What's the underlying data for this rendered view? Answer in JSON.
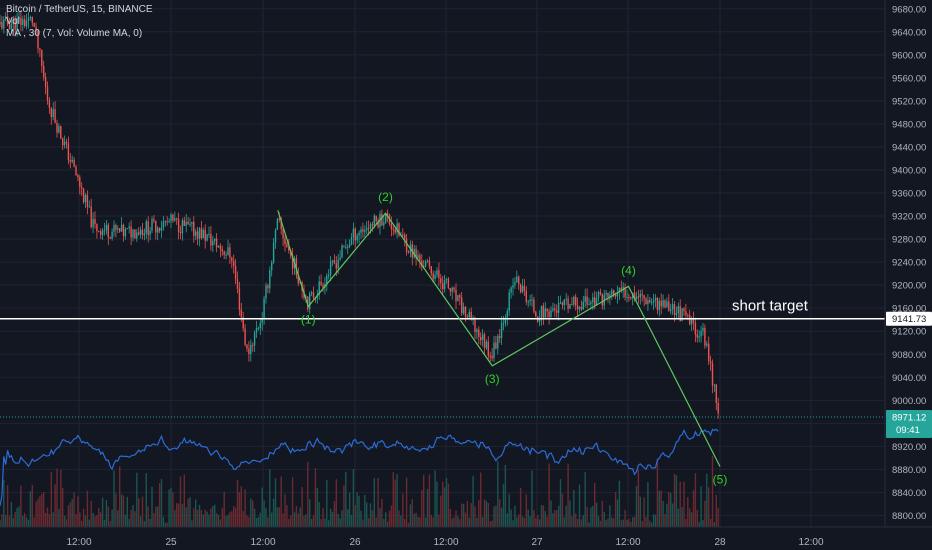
{
  "legend": {
    "symbol": "Bitcoin / TetherUS, 15, BINANCE",
    "vol": "Vol",
    "ma": "MA , 30 (7, Vol: Volume MA, 0)"
  },
  "colors": {
    "background": "#131722",
    "grid": "#1f2433",
    "up": "#26a69a",
    "down": "#ef5350",
    "wave": "#5ec85e",
    "wave_label": "#2ed12e",
    "volume_ma": "#2b6cd8",
    "target_line": "#ffffff",
    "price_badge": "#26a69a"
  },
  "chart_data": {
    "type": "candlestick",
    "symbol": "Bitcoin / TetherUS",
    "interval": "15",
    "exchange": "BINANCE",
    "x_ticks": [
      "12:00",
      "25",
      "12:00",
      "26",
      "12:00",
      "27",
      "12:00",
      "28",
      "12:00"
    ],
    "y_ticks": [
      9680,
      9640,
      9600,
      9560,
      9520,
      9480,
      9440,
      9400,
      9360,
      9320,
      9280,
      9240,
      9200,
      9160,
      9120,
      9080,
      9040,
      9000,
      8960,
      8920,
      8880,
      8840,
      8800
    ],
    "ylim": [
      8780,
      9690
    ],
    "price_path": [
      {
        "t": "24 00:00",
        "price": 9650
      },
      {
        "t": "24 06:00",
        "price": 9660
      },
      {
        "t": "24 08:00",
        "price": 9520
      },
      {
        "t": "24 12:00",
        "price": 9380
      },
      {
        "t": "24 14:00",
        "price": 9300
      },
      {
        "t": "24 18:00",
        "price": 9290
      },
      {
        "t": "25 00:00",
        "price": 9310
      },
      {
        "t": "25 04:00",
        "price": 9290
      },
      {
        "t": "25 08:00",
        "price": 9250
      },
      {
        "t": "25 10:00",
        "price": 9080
      },
      {
        "t": "25 12:00",
        "price": 9150
      },
      {
        "t": "25 14:00",
        "price": 9310
      },
      {
        "t": "25 18:00",
        "price": 9170
      },
      {
        "t": "26 00:00",
        "price": 9290
      },
      {
        "t": "26 04:00",
        "price": 9320
      },
      {
        "t": "26 08:00",
        "price": 9250
      },
      {
        "t": "26 12:00",
        "price": 9200
      },
      {
        "t": "26 18:00",
        "price": 9080
      },
      {
        "t": "26 21:00",
        "price": 9210
      },
      {
        "t": "27 00:00",
        "price": 9150
      },
      {
        "t": "27 06:00",
        "price": 9170
      },
      {
        "t": "27 12:00",
        "price": 9190
      },
      {
        "t": "27 18:00",
        "price": 9160
      },
      {
        "t": "27 22:00",
        "price": 9110
      },
      {
        "t": "28 00:00",
        "price": 8971
      }
    ],
    "waves": [
      {
        "label": "(1)",
        "t": "25 18:00",
        "price": 9163
      },
      {
        "label": "(2)",
        "t": "26 04:00",
        "price": 9325
      },
      {
        "label": "(3)",
        "t": "26 18:00",
        "price": 9060
      },
      {
        "label": "(4)",
        "t": "27 12:00",
        "price": 9198
      },
      {
        "label": "(5)",
        "t": "28 00:00",
        "price": 8885
      }
    ],
    "wave_start": {
      "t": "25 14:00",
      "price": 9330
    },
    "annotation": {
      "text": "short target",
      "price": 9141.73
    },
    "target_label": "9141.73",
    "current_price": "8971.12",
    "countdown": "09:41",
    "current_price_value": 8971.12
  }
}
